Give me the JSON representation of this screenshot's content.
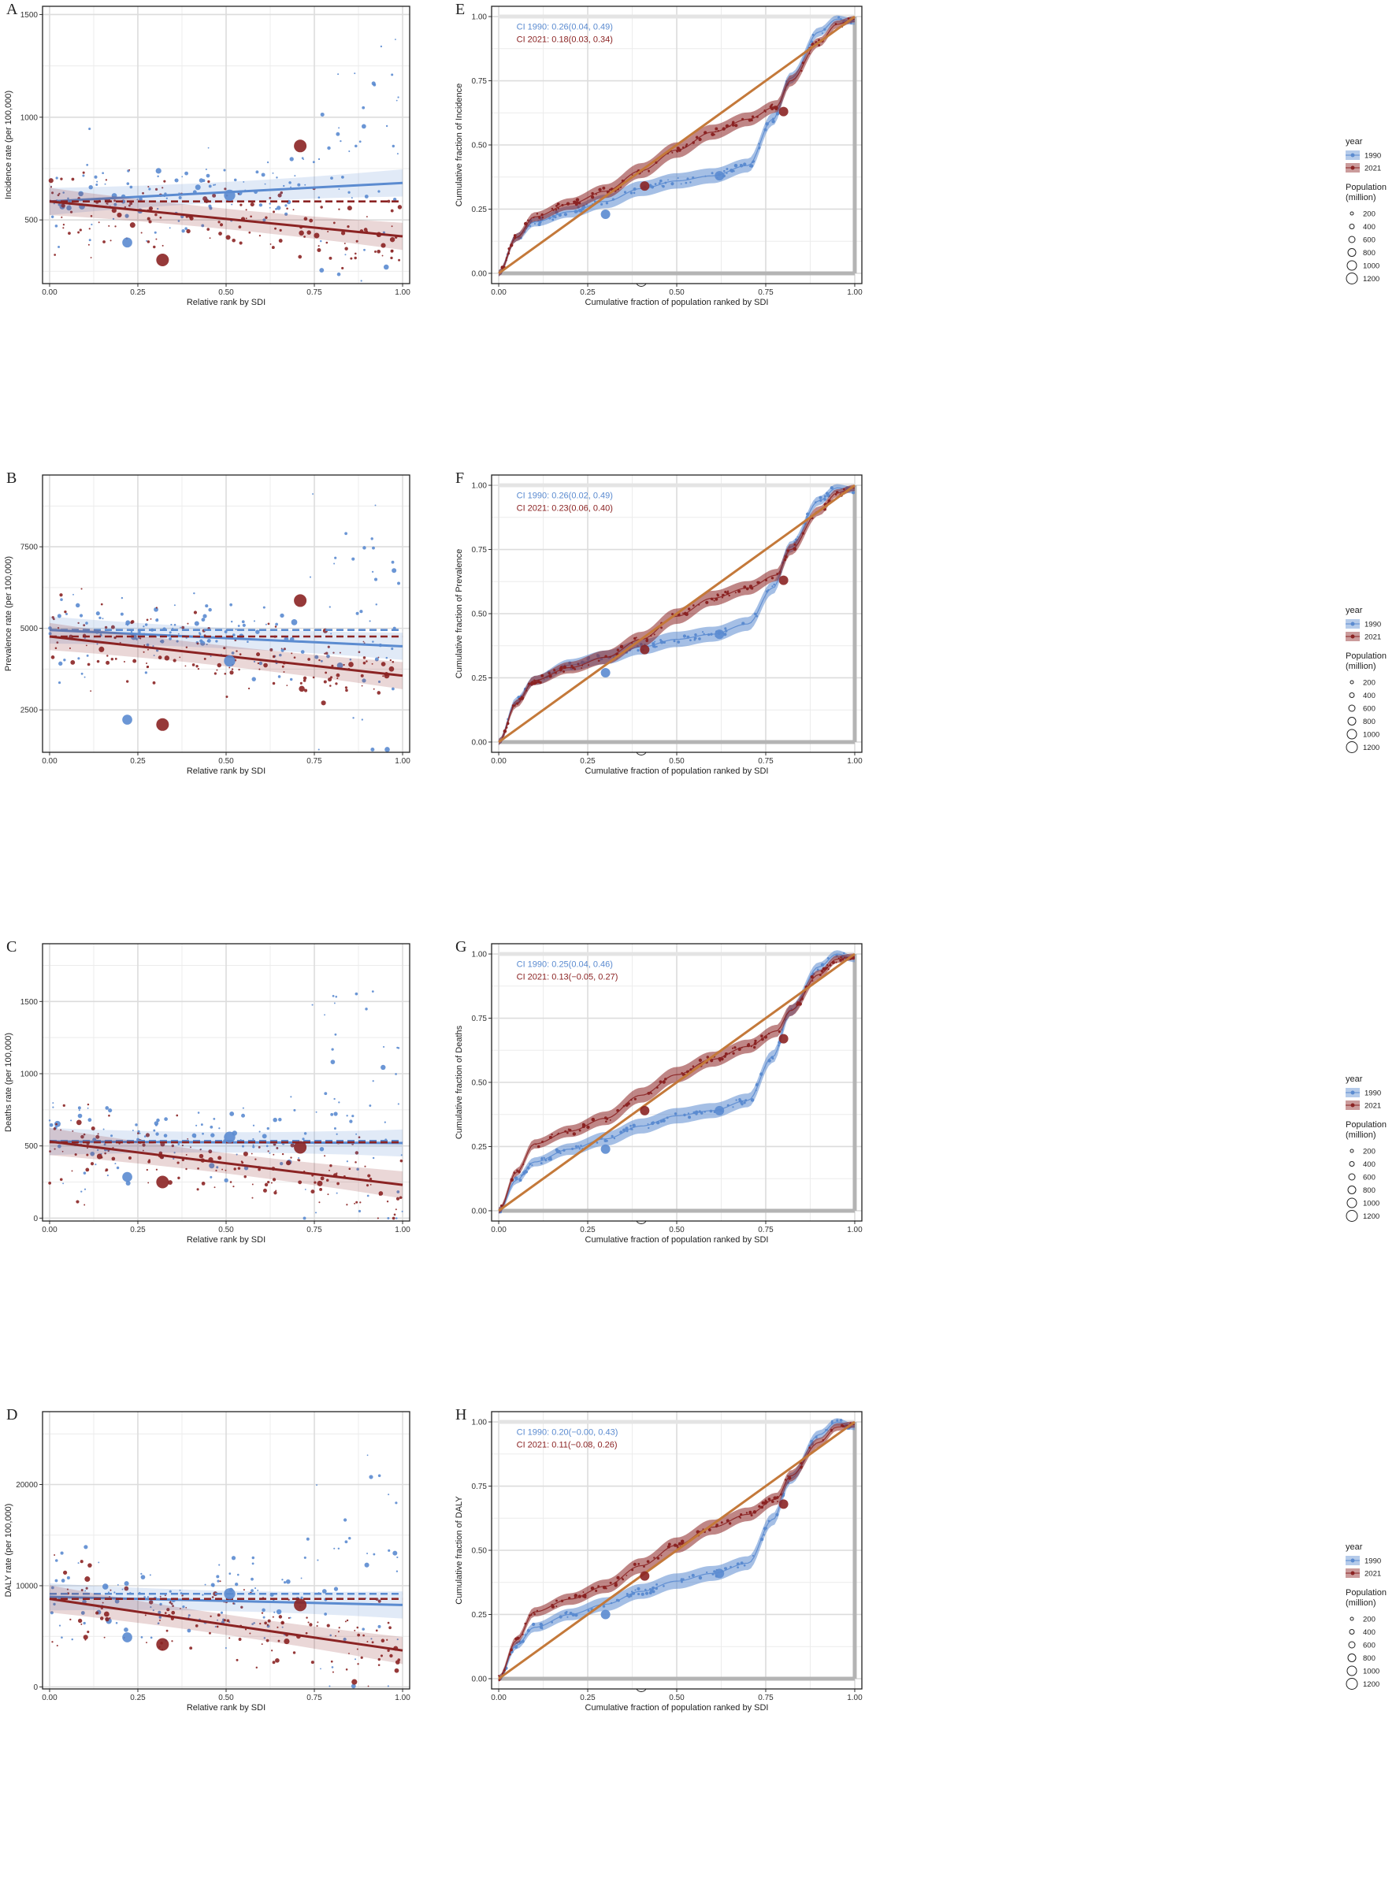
{
  "colors": {
    "c1990": "#5b8bd0",
    "c2021": "#8b2323",
    "grid": "#dcdcdc",
    "ineq_line": "#c4793a",
    "axis_gray": "#b4b4b4"
  },
  "legend": {
    "year_title": "year",
    "year_1990": "1990",
    "year_2021": "2021",
    "pop_title_1": "Population",
    "pop_title_2": "(million)",
    "pop_sizes": [
      "200",
      "400",
      "600",
      "800",
      "1000",
      "1200"
    ]
  },
  "chart_data": [
    {
      "panel": "A",
      "type": "scatter",
      "xlabel": "Relative rank by SDI",
      "ylabel": "Incidence rate (per 100,000)",
      "xlim": [
        -0.02,
        1.02
      ],
      "ylim": [
        190,
        1540
      ],
      "xticks": [
        0,
        0.25,
        0.5,
        0.75,
        1
      ],
      "xtick_labels": [
        "0.00",
        "0.25",
        "0.50",
        "0.75",
        "1.00"
      ],
      "yticks": [
        500,
        1000,
        1500
      ],
      "ytick_labels": [
        "500",
        "1000",
        "1500"
      ],
      "series": [
        {
          "name": "1990",
          "fit_start": 590,
          "fit_end": 680,
          "mean": null
        },
        {
          "name": "2021",
          "fit_start": 590,
          "fit_end": 420,
          "mean": 590
        }
      ],
      "big_points": [
        {
          "year": "1990",
          "x": 0.22,
          "y": 390,
          "pop": 800
        },
        {
          "year": "1990",
          "x": 0.51,
          "y": 620,
          "pop": 1000
        },
        {
          "year": "2021",
          "x": 0.32,
          "y": 305,
          "pop": 1200
        },
        {
          "year": "2021",
          "x": 0.71,
          "y": 860,
          "pop": 1200
        }
      ]
    },
    {
      "panel": "B",
      "type": "scatter",
      "xlabel": "Relative rank by SDI",
      "ylabel": "Prevalence rate (per 100,000)",
      "xlim": [
        -0.02,
        1.02
      ],
      "ylim": [
        1200,
        9700
      ],
      "xticks": [
        0,
        0.25,
        0.5,
        0.75,
        1
      ],
      "xtick_labels": [
        "0.00",
        "0.25",
        "0.50",
        "0.75",
        "1.00"
      ],
      "yticks": [
        2500,
        5000,
        7500
      ],
      "ytick_labels": [
        "2500",
        "5000",
        "7500"
      ],
      "series": [
        {
          "name": "1990",
          "fit_start": 4950,
          "fit_end": 4450,
          "mean": 4950
        },
        {
          "name": "2021",
          "fit_start": 4750,
          "fit_end": 3550,
          "mean": 4750
        }
      ],
      "big_points": [
        {
          "year": "1990",
          "x": 0.22,
          "y": 2200,
          "pop": 800
        },
        {
          "year": "1990",
          "x": 0.51,
          "y": 4000,
          "pop": 1000
        },
        {
          "year": "2021",
          "x": 0.32,
          "y": 2050,
          "pop": 1200
        },
        {
          "year": "2021",
          "x": 0.71,
          "y": 5850,
          "pop": 1200
        }
      ]
    },
    {
      "panel": "C",
      "type": "scatter",
      "xlabel": "Relative rank by SDI",
      "ylabel": "Deaths rate (per 100,000)",
      "xlim": [
        -0.02,
        1.02
      ],
      "ylim": [
        -20,
        1900
      ],
      "xticks": [
        0,
        0.25,
        0.5,
        0.75,
        1
      ],
      "xtick_labels": [
        "0.00",
        "0.25",
        "0.50",
        "0.75",
        "1.00"
      ],
      "yticks": [
        0,
        500,
        1000,
        1500
      ],
      "ytick_labels": [
        "0",
        "500",
        "1000",
        "1500"
      ],
      "series": [
        {
          "name": "1990",
          "fit_start": 530,
          "fit_end": 520,
          "mean": 535
        },
        {
          "name": "2021",
          "fit_start": 530,
          "fit_end": 230,
          "mean": 525
        }
      ],
      "big_points": [
        {
          "year": "1990",
          "x": 0.22,
          "y": 285,
          "pop": 800
        },
        {
          "year": "1990",
          "x": 0.51,
          "y": 560,
          "pop": 1000
        },
        {
          "year": "2021",
          "x": 0.32,
          "y": 250,
          "pop": 1200
        },
        {
          "year": "2021",
          "x": 0.71,
          "y": 490,
          "pop": 1200
        }
      ]
    },
    {
      "panel": "D",
      "type": "scatter",
      "xlabel": "Relative rank by SDI",
      "ylabel": "DALY rate (per 100,000)",
      "xlim": [
        -0.02,
        1.02
      ],
      "ylim": [
        -200,
        27200
      ],
      "xticks": [
        0,
        0.25,
        0.5,
        0.75,
        1
      ],
      "xtick_labels": [
        "0.00",
        "0.25",
        "0.50",
        "0.75",
        "1.00"
      ],
      "yticks": [
        0,
        10000,
        20000
      ],
      "ytick_labels": [
        "0",
        "10000",
        "20000"
      ],
      "series": [
        {
          "name": "1990",
          "fit_start": 8900,
          "fit_end": 8100,
          "mean": 9200
        },
        {
          "name": "2021",
          "fit_start": 8700,
          "fit_end": 3600,
          "mean": 8700
        }
      ],
      "big_points": [
        {
          "year": "1990",
          "x": 0.22,
          "y": 4900,
          "pop": 800
        },
        {
          "year": "1990",
          "x": 0.51,
          "y": 9200,
          "pop": 1000
        },
        {
          "year": "2021",
          "x": 0.32,
          "y": 4200,
          "pop": 1200
        },
        {
          "year": "2021",
          "x": 0.71,
          "y": 8100,
          "pop": 1200
        }
      ]
    },
    {
      "panel": "E",
      "type": "line",
      "xlabel": "Cumulative fraction of population ranked by SDI",
      "ylabel": "Cumulative fraction of Incidence",
      "xlim": [
        -0.02,
        1.02
      ],
      "ylim": [
        -0.04,
        1.04
      ],
      "xticks": [
        0,
        0.25,
        0.5,
        0.75,
        1
      ],
      "xtick_labels": [
        "0.00",
        "0.25",
        "0.50",
        "0.75",
        "1.00"
      ],
      "yticks": [
        0,
        0.25,
        0.5,
        0.75,
        1
      ],
      "ytick_labels": [
        "0.00",
        "0.25",
        "0.50",
        "0.75",
        "1.00"
      ],
      "ci_1990": "CI 1990:  0.26(0.04, 0.49)",
      "ci_2021": "CI 2021:  0.18(0.03, 0.34)",
      "series": [
        {
          "name": "1990",
          "x": [
            0,
            0.05,
            0.1,
            0.2,
            0.3,
            0.4,
            0.5,
            0.6,
            0.7,
            0.77,
            0.82,
            0.9,
            0.95,
            1.0
          ],
          "y": [
            0,
            0.14,
            0.2,
            0.24,
            0.28,
            0.33,
            0.36,
            0.38,
            0.42,
            0.6,
            0.76,
            0.94,
            0.99,
            0.98
          ]
        },
        {
          "name": "2021",
          "x": [
            0,
            0.05,
            0.1,
            0.2,
            0.3,
            0.4,
            0.5,
            0.6,
            0.7,
            0.78,
            0.82,
            0.9,
            0.95,
            1.0
          ],
          "y": [
            0,
            0.14,
            0.22,
            0.27,
            0.32,
            0.4,
            0.48,
            0.55,
            0.6,
            0.65,
            0.75,
            0.9,
            0.97,
            0.99
          ]
        }
      ],
      "big_points": [
        {
          "year": "1990",
          "x": 0.3,
          "y": 0.23
        },
        {
          "year": "1990",
          "x": 0.62,
          "y": 0.38
        },
        {
          "year": "2021",
          "x": 0.41,
          "y": 0.34
        },
        {
          "year": "2021",
          "x": 0.8,
          "y": 0.63
        }
      ]
    },
    {
      "panel": "F",
      "type": "line",
      "xlabel": "Cumulative fraction of population ranked by SDI",
      "ylabel": "Cumulative fraction of Prevalence",
      "xlim": [
        -0.02,
        1.02
      ],
      "ylim": [
        -0.04,
        1.04
      ],
      "xticks": [
        0,
        0.25,
        0.5,
        0.75,
        1
      ],
      "xtick_labels": [
        "0.00",
        "0.25",
        "0.50",
        "0.75",
        "1.00"
      ],
      "yticks": [
        0,
        0.25,
        0.5,
        0.75,
        1
      ],
      "ytick_labels": [
        "0.00",
        "0.25",
        "0.50",
        "0.75",
        "1.00"
      ],
      "ci_1990": "CI 1990:  0.26(0.02, 0.49)",
      "ci_2021": "CI 2021:  0.23(0.06, 0.40)",
      "series": [
        {
          "name": "1990",
          "x": [
            0,
            0.05,
            0.1,
            0.2,
            0.3,
            0.4,
            0.5,
            0.6,
            0.7,
            0.77,
            0.82,
            0.9,
            0.95,
            1.0
          ],
          "y": [
            0,
            0.16,
            0.24,
            0.3,
            0.33,
            0.37,
            0.4,
            0.42,
            0.46,
            0.6,
            0.76,
            0.94,
            0.99,
            0.98
          ]
        },
        {
          "name": "2021",
          "x": [
            0,
            0.05,
            0.1,
            0.2,
            0.3,
            0.4,
            0.5,
            0.6,
            0.7,
            0.78,
            0.82,
            0.9,
            0.95,
            1.0
          ],
          "y": [
            0,
            0.15,
            0.24,
            0.29,
            0.33,
            0.4,
            0.49,
            0.56,
            0.6,
            0.65,
            0.75,
            0.9,
            0.97,
            0.99
          ]
        }
      ],
      "big_points": [
        {
          "year": "1990",
          "x": 0.3,
          "y": 0.27
        },
        {
          "year": "1990",
          "x": 0.62,
          "y": 0.42
        },
        {
          "year": "2021",
          "x": 0.41,
          "y": 0.36
        },
        {
          "year": "2021",
          "x": 0.8,
          "y": 0.63
        }
      ]
    },
    {
      "panel": "G",
      "type": "line",
      "xlabel": "Cumulative fraction of population ranked by SDI",
      "ylabel": "Cumulative fraction of Deaths",
      "xlim": [
        -0.02,
        1.02
      ],
      "ylim": [
        -0.04,
        1.04
      ],
      "xticks": [
        0,
        0.25,
        0.5,
        0.75,
        1
      ],
      "xtick_labels": [
        "0.00",
        "0.25",
        "0.50",
        "0.75",
        "1.00"
      ],
      "yticks": [
        0,
        0.25,
        0.5,
        0.75,
        1
      ],
      "ytick_labels": [
        "0.00",
        "0.25",
        "0.50",
        "0.75",
        "1.00"
      ],
      "ci_1990": "CI 1990:  0.25(0.04, 0.46)",
      "ci_2021": "CI 2021:  0.13(−0.05, 0.27)",
      "series": [
        {
          "name": "1990",
          "x": [
            0,
            0.05,
            0.1,
            0.2,
            0.3,
            0.4,
            0.5,
            0.6,
            0.7,
            0.77,
            0.82,
            0.9,
            0.95,
            1.0
          ],
          "y": [
            0,
            0.12,
            0.19,
            0.24,
            0.28,
            0.33,
            0.37,
            0.39,
            0.43,
            0.6,
            0.78,
            0.95,
            1.0,
            0.98
          ]
        },
        {
          "name": "2021",
          "x": [
            0,
            0.05,
            0.1,
            0.2,
            0.3,
            0.4,
            0.5,
            0.6,
            0.7,
            0.78,
            0.82,
            0.9,
            0.95,
            1.0
          ],
          "y": [
            0,
            0.15,
            0.26,
            0.31,
            0.36,
            0.45,
            0.53,
            0.59,
            0.64,
            0.7,
            0.78,
            0.92,
            0.98,
            0.99
          ]
        }
      ],
      "big_points": [
        {
          "year": "1990",
          "x": 0.3,
          "y": 0.24
        },
        {
          "year": "1990",
          "x": 0.62,
          "y": 0.39
        },
        {
          "year": "2021",
          "x": 0.41,
          "y": 0.39
        },
        {
          "year": "2021",
          "x": 0.8,
          "y": 0.67
        }
      ]
    },
    {
      "panel": "H",
      "type": "line",
      "xlabel": "Cumulative fraction of population ranked by SDI",
      "ylabel": "Cumulative fraction of DALY",
      "xlim": [
        -0.02,
        1.02
      ],
      "ylim": [
        -0.04,
        1.04
      ],
      "xticks": [
        0,
        0.25,
        0.5,
        0.75,
        1
      ],
      "xtick_labels": [
        "0.00",
        "0.25",
        "0.50",
        "0.75",
        "1.00"
      ],
      "yticks": [
        0,
        0.25,
        0.5,
        0.75,
        1
      ],
      "ytick_labels": [
        "0.00",
        "0.25",
        "0.50",
        "0.75",
        "1.00"
      ],
      "ci_1990": "CI 1990:  0.20(−0.00, 0.43)",
      "ci_2021": "CI 2021:  0.11(−0.08, 0.26)",
      "series": [
        {
          "name": "1990",
          "x": [
            0,
            0.05,
            0.1,
            0.2,
            0.3,
            0.4,
            0.5,
            0.6,
            0.7,
            0.77,
            0.82,
            0.9,
            0.95,
            1.0
          ],
          "y": [
            0,
            0.13,
            0.2,
            0.25,
            0.29,
            0.34,
            0.38,
            0.41,
            0.45,
            0.62,
            0.78,
            0.95,
            1.0,
            0.98
          ]
        },
        {
          "name": "2021",
          "x": [
            0,
            0.05,
            0.1,
            0.2,
            0.3,
            0.4,
            0.5,
            0.6,
            0.7,
            0.78,
            0.82,
            0.9,
            0.95,
            1.0
          ],
          "y": [
            0,
            0.15,
            0.26,
            0.31,
            0.36,
            0.44,
            0.52,
            0.59,
            0.64,
            0.7,
            0.79,
            0.92,
            0.98,
            0.99
          ]
        }
      ],
      "big_points": [
        {
          "year": "1990",
          "x": 0.3,
          "y": 0.25
        },
        {
          "year": "1990",
          "x": 0.62,
          "y": 0.41
        },
        {
          "year": "2021",
          "x": 0.41,
          "y": 0.4
        },
        {
          "year": "2021",
          "x": 0.8,
          "y": 0.68
        }
      ]
    }
  ]
}
